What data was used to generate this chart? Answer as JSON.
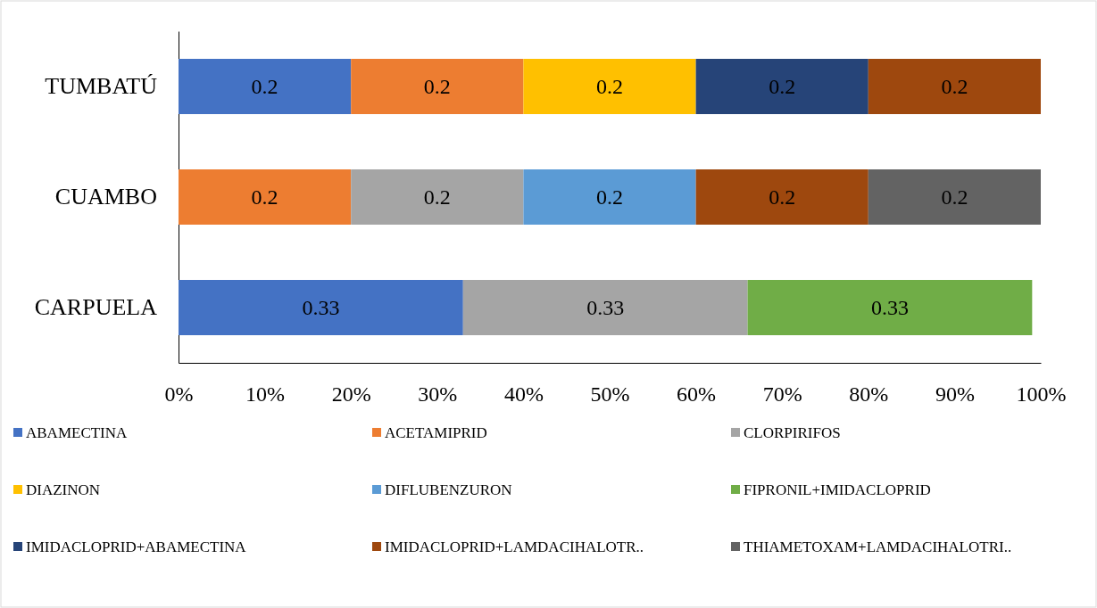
{
  "chart_data": {
    "type": "bar",
    "orientation": "horizontal",
    "stacked": true,
    "data_labels": true,
    "legend": "bottom",
    "grid": false,
    "categories": [
      "TUMBATÚ",
      "CUAMBO",
      "CARPUELA"
    ],
    "xlim": [
      0,
      1
    ],
    "xticks": [
      {
        "value": 0,
        "label": "0%"
      },
      {
        "value": 0.1,
        "label": "10%"
      },
      {
        "value": 0.2,
        "label": "20%"
      },
      {
        "value": 0.3,
        "label": "30%"
      },
      {
        "value": 0.4,
        "label": "40%"
      },
      {
        "value": 0.5,
        "label": "50%"
      },
      {
        "value": 0.6,
        "label": "60%"
      },
      {
        "value": 0.7,
        "label": "70%"
      },
      {
        "value": 0.8,
        "label": "80%"
      },
      {
        "value": 0.9,
        "label": "90%"
      },
      {
        "value": 1,
        "label": "100%"
      }
    ],
    "series": [
      {
        "name": "ABAMECTINA",
        "color": "#4472c4",
        "values": [
          0.2,
          null,
          0.33
        ]
      },
      {
        "name": "ACETAMIPRID",
        "color": "#ed7d31",
        "values": [
          0.2,
          0.2,
          null
        ]
      },
      {
        "name": "CLORPIRIFOS",
        "color": "#a5a5a5",
        "values": [
          null,
          0.2,
          0.33
        ]
      },
      {
        "name": "DIAZINON",
        "color": "#ffc000",
        "values": [
          0.2,
          null,
          null
        ]
      },
      {
        "name": "DIFLUBENZURON",
        "color": "#5b9bd5",
        "values": [
          null,
          0.2,
          null
        ]
      },
      {
        "name": "FIPRONIL+IMIDACLOPRID",
        "color": "#70ad47",
        "values": [
          null,
          null,
          0.33
        ]
      },
      {
        "name": "IMIDACLOPRID+ABAMECTINA",
        "color": "#264478",
        "values": [
          0.2,
          null,
          null
        ]
      },
      {
        "name": "IMIDACLOPRID+LAMDACIHALOTR..",
        "color": "#9e480e",
        "values": [
          0.2,
          0.2,
          null
        ]
      },
      {
        "name": "THIAMETOXAM+LAMDACIHALOTRI..",
        "color": "#636363",
        "values": [
          null,
          0.2,
          null
        ]
      }
    ]
  }
}
